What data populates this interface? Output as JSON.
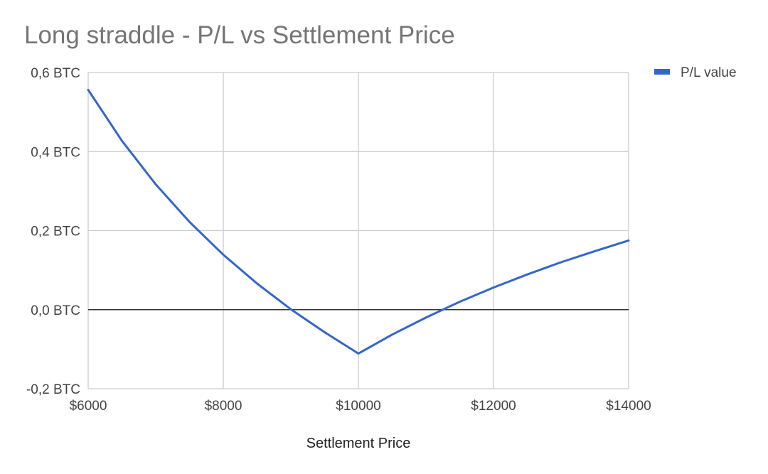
{
  "chart_data": {
    "type": "line",
    "title": "Long straddle - P/L vs Settlement Price",
    "xlabel": "Settlement Price",
    "ylabel": "",
    "xlim": [
      6000,
      14000
    ],
    "ylim": [
      -0.2,
      0.6
    ],
    "x_ticks": [
      6000,
      8000,
      10000,
      12000,
      14000
    ],
    "x_tick_labels": [
      "$6000",
      "$8000",
      "$10000",
      "$12000",
      "$14000"
    ],
    "y_ticks": [
      -0.2,
      0.0,
      0.2,
      0.4,
      0.6
    ],
    "y_tick_labels": [
      "-0,2 BTC",
      "0,0 BTC",
      "0,2 BTC",
      "0,4 BTC",
      "0,6 BTC"
    ],
    "grid": true,
    "legend_position": "top-right",
    "series": [
      {
        "name": "P/L value",
        "color": "#3366cc",
        "x": [
          6000,
          6500,
          7000,
          7500,
          8000,
          8500,
          9000,
          9500,
          10000,
          10500,
          11000,
          11500,
          12000,
          12500,
          13000,
          13500,
          14000
        ],
        "y": [
          0.556,
          0.427,
          0.317,
          0.222,
          0.139,
          0.066,
          0.001,
          -0.057,
          -0.111,
          -0.063,
          -0.02,
          0.02,
          0.056,
          0.089,
          0.12,
          0.148,
          0.175
        ]
      }
    ]
  }
}
